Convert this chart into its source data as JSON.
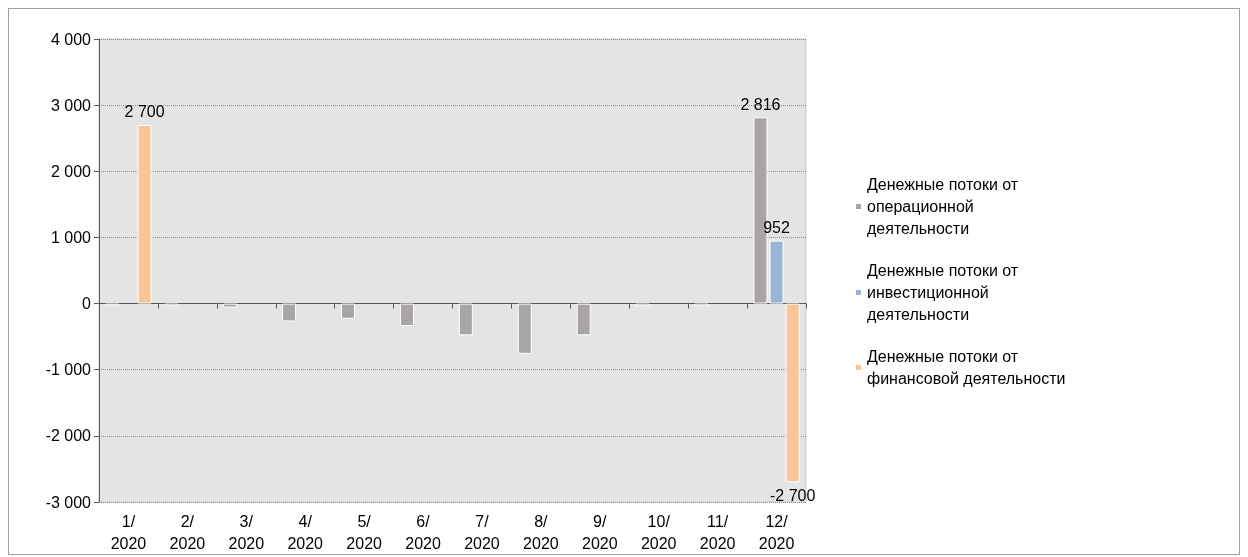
{
  "chart_data": {
    "type": "bar",
    "categories": [
      "1/2020",
      "2/2020",
      "3/2020",
      "4/2020",
      "5/2020",
      "6/2020",
      "7/2020",
      "8/2020",
      "9/2020",
      "10/2020",
      "11/2020",
      "12/2020"
    ],
    "series": [
      {
        "name": "Денежные потоки от операционной деятельности",
        "color": "#a9a5a5",
        "values": [
          -30,
          -40,
          -60,
          -270,
          -230,
          -340,
          -480,
          -760,
          -480,
          -40,
          -40,
          2816
        ],
        "value_labels": [
          null,
          null,
          null,
          null,
          null,
          null,
          null,
          null,
          null,
          null,
          null,
          "2 816"
        ]
      },
      {
        "name": "Денежные потоки от инвестиционной деятельности",
        "color": "#9cb4d4",
        "values": [
          null,
          null,
          null,
          null,
          null,
          null,
          null,
          null,
          null,
          null,
          null,
          952
        ],
        "value_labels": [
          null,
          null,
          null,
          null,
          null,
          null,
          null,
          null,
          null,
          null,
          null,
          "952"
        ]
      },
      {
        "name": "Денежные потоки от финансовой деятельности",
        "color": "#f9c496",
        "values": [
          2700,
          null,
          null,
          null,
          null,
          null,
          null,
          null,
          null,
          null,
          null,
          -2700
        ],
        "value_labels": [
          "2 700",
          null,
          null,
          null,
          null,
          null,
          null,
          null,
          null,
          null,
          null,
          "-2 700"
        ]
      }
    ],
    "ylim": [
      -3000,
      4000
    ],
    "yticks": [
      {
        "value": -3000,
        "label": "-3 000"
      },
      {
        "value": -2000,
        "label": "-2 000"
      },
      {
        "value": -1000,
        "label": "-1 000"
      },
      0,
      {
        "value": 1000,
        "label": "1 000"
      },
      {
        "value": 2000,
        "label": "2 000"
      },
      {
        "value": 3000,
        "label": "3 000"
      },
      {
        "value": 4000,
        "label": "4 000"
      }
    ],
    "grid": "y",
    "legend": "right"
  }
}
